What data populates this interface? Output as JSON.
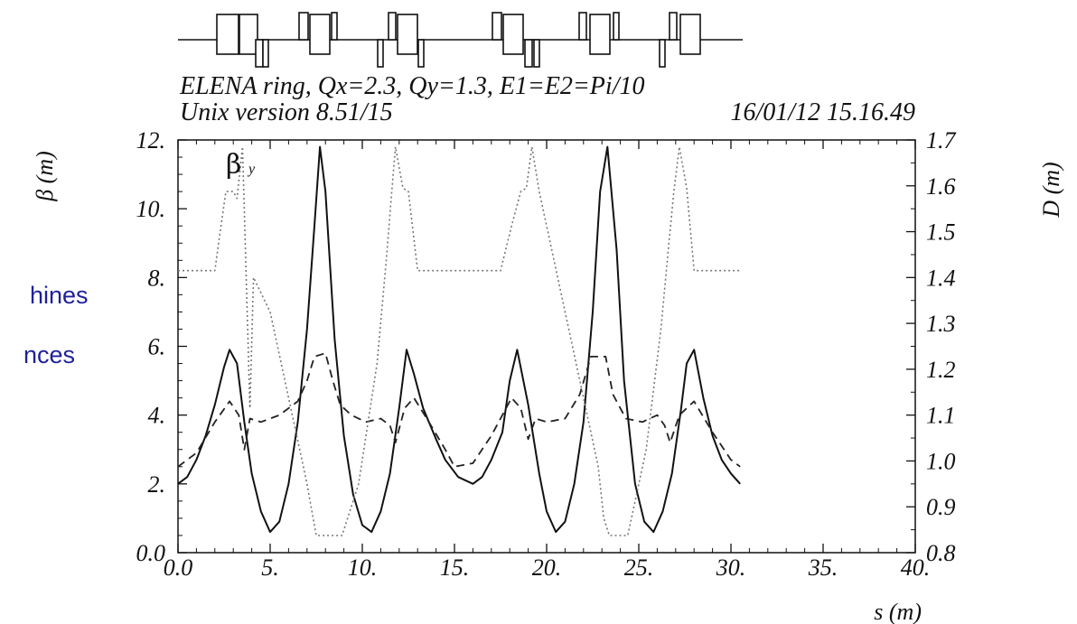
{
  "side_text": [
    "hines",
    "nces"
  ],
  "chart_data": {
    "type": "line",
    "title": "ELENA ring, Qx=2.3, Qy=1.3, E1=E2=Pi/10",
    "subtitle_left": "Unix version 8.51/15",
    "subtitle_right": "16/01/12  15.16.49",
    "xlabel": "s (m)",
    "ylabel_left": "β  (m)",
    "ylabel_right": "D (m)",
    "xlim": [
      0,
      40
    ],
    "ylim_left": [
      0,
      12
    ],
    "ylim_right": [
      0.8,
      1.7
    ],
    "x_ticks": [
      "0.0",
      "5.",
      "10.",
      "15.",
      "20.",
      "25.",
      "30.",
      "35.",
      "40."
    ],
    "y_left_ticks": [
      "0.0",
      "2.",
      "4.",
      "6.",
      "8.",
      "10.",
      "12."
    ],
    "y_right_ticks": [
      "0.8",
      "0.9",
      "1.0",
      "1.1",
      "1.2",
      "1.3",
      "1.4",
      "1.5",
      "1.6",
      "1.7"
    ],
    "annotation": "β",
    "annotation_sub": "y",
    "series": [
      {
        "axis": "left",
        "style": "solid",
        "x": [
          0.0,
          0.5,
          1.0,
          1.5,
          2.0,
          2.5,
          2.8,
          3.2,
          3.6,
          4.0,
          4.5,
          5.0,
          5.5,
          6.0,
          6.5,
          7.0,
          7.4,
          7.7,
          8.0,
          8.5,
          9.0,
          9.5,
          10.0,
          10.5,
          11.0,
          11.5,
          12.0,
          12.4,
          12.8,
          13.3,
          14.0,
          14.5,
          15.2,
          16.0,
          16.5,
          17.0,
          17.6,
          18.0,
          18.4,
          19.0,
          19.6,
          20.0,
          20.5,
          21.0,
          21.5,
          22.0,
          22.5,
          22.9,
          23.3,
          23.8,
          24.2,
          24.8,
          25.3,
          25.8,
          26.3,
          26.8,
          27.3,
          27.6,
          28.0,
          28.5,
          29.0,
          29.5,
          30.0,
          30.5
        ],
        "y": [
          2.0,
          2.2,
          2.7,
          3.4,
          4.3,
          5.4,
          5.9,
          5.5,
          3.8,
          2.3,
          1.2,
          0.6,
          0.9,
          2.0,
          3.8,
          6.5,
          9.5,
          11.8,
          10.5,
          6.2,
          3.4,
          1.7,
          0.8,
          0.6,
          1.2,
          2.3,
          4.2,
          5.9,
          5.2,
          4.2,
          3.3,
          2.7,
          2.2,
          2.0,
          2.2,
          2.7,
          3.5,
          5.0,
          5.9,
          4.3,
          2.3,
          1.2,
          0.6,
          0.9,
          2.0,
          3.8,
          7.0,
          10.5,
          11.8,
          8.8,
          5.0,
          2.0,
          0.9,
          0.6,
          1.2,
          2.3,
          4.2,
          5.5,
          5.9,
          4.5,
          3.4,
          2.7,
          2.3,
          2.0
        ]
      },
      {
        "axis": "left",
        "style": "dashed",
        "x": [
          0.0,
          1.0,
          2.0,
          2.8,
          3.3,
          3.6,
          3.9,
          4.5,
          5.5,
          6.5,
          7.0,
          7.4,
          8.0,
          8.4,
          8.8,
          9.4,
          10.2,
          11.0,
          11.5,
          11.8,
          12.3,
          12.8,
          13.5,
          14.5,
          15.0,
          16.0,
          17.0,
          17.6,
          18.1,
          18.6,
          19.0,
          19.4,
          20.0,
          21.0,
          21.8,
          22.4,
          23.2,
          23.6,
          24.3,
          25.2,
          26.0,
          26.4,
          26.7,
          27.2,
          28.0,
          29.0,
          30.0,
          30.5
        ],
        "y": [
          2.5,
          2.9,
          3.8,
          4.4,
          4.0,
          3.0,
          3.9,
          3.8,
          4.0,
          4.4,
          5.0,
          5.7,
          5.8,
          5.0,
          4.3,
          4.0,
          3.8,
          3.9,
          3.7,
          3.2,
          4.2,
          4.5,
          3.9,
          3.0,
          2.5,
          2.6,
          3.4,
          4.0,
          4.5,
          4.2,
          3.3,
          3.9,
          3.8,
          3.9,
          4.6,
          5.7,
          5.7,
          4.6,
          3.9,
          3.8,
          4.0,
          3.7,
          3.2,
          4.0,
          4.4,
          3.5,
          2.7,
          2.5
        ]
      },
      {
        "axis": "left",
        "style": "dotted",
        "x": [
          0.0,
          2.0,
          2.2,
          2.6,
          3.0,
          3.2,
          3.5,
          3.7,
          3.9,
          4.1,
          5.0,
          6.0,
          7.0,
          7.5,
          7.8,
          8.6,
          8.9,
          9.8,
          10.8,
          11.3,
          11.6,
          11.8,
          12.2,
          12.5,
          13.0,
          14.5,
          16.0,
          17.5,
          18.1,
          18.6,
          18.9,
          19.2,
          19.6,
          20.0,
          21.0,
          22.0,
          22.8,
          23.1,
          23.4,
          24.4,
          25.4,
          26.2,
          26.6,
          26.9,
          27.2,
          27.6,
          28.0,
          29.0,
          30.5
        ],
        "y": [
          8.2,
          8.2,
          9.0,
          10.5,
          10.5,
          10.3,
          11.8,
          8.0,
          4.2,
          8.0,
          7.0,
          4.5,
          2.0,
          0.5,
          0.5,
          0.5,
          0.5,
          2.0,
          5.5,
          8.5,
          10.5,
          11.8,
          10.6,
          10.5,
          8.2,
          8.2,
          8.2,
          8.2,
          9.5,
          10.5,
          10.6,
          11.8,
          10.5,
          9.5,
          7.0,
          4.5,
          2.5,
          1.0,
          0.5,
          0.5,
          3.0,
          6.5,
          8.8,
          10.5,
          11.8,
          10.6,
          8.2,
          8.2,
          8.2
        ]
      }
    ]
  }
}
